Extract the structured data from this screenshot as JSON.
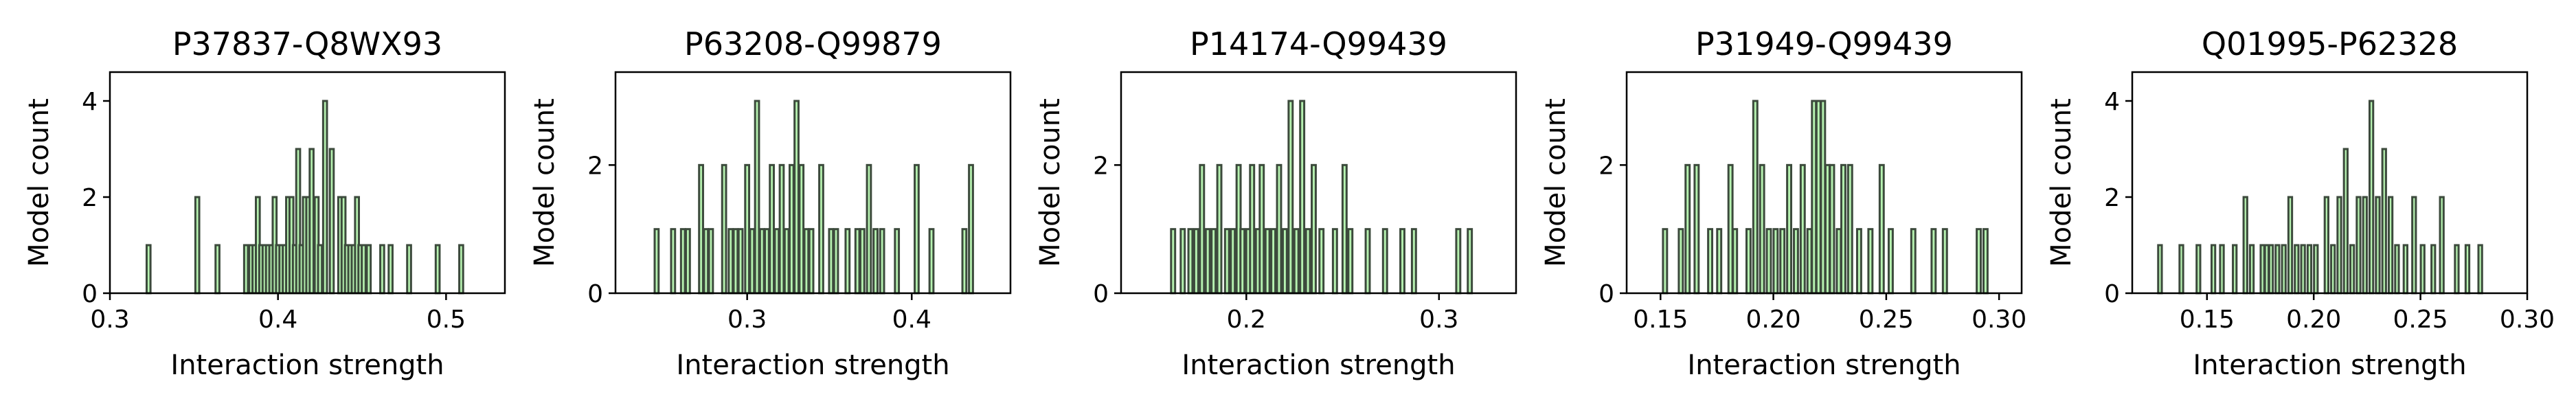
{
  "colors": {
    "bar_fill": "#b6f2b0",
    "bar_edge": "#3c4a3c",
    "axis": "#000000",
    "background": "#ffffff"
  },
  "chart_data": [
    {
      "type": "bar",
      "title": "P37837-Q8WX93",
      "xlabel": "Interaction strength",
      "ylabel": "Model count",
      "xlim": [
        0.3,
        0.535
      ],
      "ylim": [
        0,
        4.6
      ],
      "xticks": [
        0.3,
        0.4,
        0.5
      ],
      "xtick_labels": [
        "0.3",
        "0.4",
        "0.5"
      ],
      "yticks": [
        0,
        2,
        4
      ],
      "ytick_labels": [
        "0",
        "2",
        "4"
      ],
      "bin_width": 0.0023,
      "grid": false,
      "bins": [
        {
          "x": 0.323,
          "count": 1
        },
        {
          "x": 0.352,
          "count": 2
        },
        {
          "x": 0.364,
          "count": 1
        },
        {
          "x": 0.381,
          "count": 1
        },
        {
          "x": 0.384,
          "count": 1
        },
        {
          "x": 0.386,
          "count": 1
        },
        {
          "x": 0.388,
          "count": 2
        },
        {
          "x": 0.39,
          "count": 1
        },
        {
          "x": 0.392,
          "count": 1
        },
        {
          "x": 0.394,
          "count": 1
        },
        {
          "x": 0.396,
          "count": 1
        },
        {
          "x": 0.398,
          "count": 2
        },
        {
          "x": 0.4,
          "count": 1
        },
        {
          "x": 0.402,
          "count": 1
        },
        {
          "x": 0.404,
          "count": 1
        },
        {
          "x": 0.406,
          "count": 2
        },
        {
          "x": 0.408,
          "count": 2
        },
        {
          "x": 0.41,
          "count": 1
        },
        {
          "x": 0.412,
          "count": 3
        },
        {
          "x": 0.414,
          "count": 1
        },
        {
          "x": 0.416,
          "count": 2
        },
        {
          "x": 0.418,
          "count": 2
        },
        {
          "x": 0.42,
          "count": 3
        },
        {
          "x": 0.423,
          "count": 2
        },
        {
          "x": 0.425,
          "count": 1
        },
        {
          "x": 0.428,
          "count": 4
        },
        {
          "x": 0.432,
          "count": 3
        },
        {
          "x": 0.437,
          "count": 2
        },
        {
          "x": 0.439,
          "count": 2
        },
        {
          "x": 0.441,
          "count": 1
        },
        {
          "x": 0.443,
          "count": 1
        },
        {
          "x": 0.445,
          "count": 1
        },
        {
          "x": 0.447,
          "count": 2
        },
        {
          "x": 0.449,
          "count": 1
        },
        {
          "x": 0.451,
          "count": 1
        },
        {
          "x": 0.454,
          "count": 1
        },
        {
          "x": 0.462,
          "count": 1
        },
        {
          "x": 0.467,
          "count": 1
        },
        {
          "x": 0.478,
          "count": 1
        },
        {
          "x": 0.495,
          "count": 1
        },
        {
          "x": 0.509,
          "count": 1
        }
      ]
    },
    {
      "type": "bar",
      "title": "P63208-Q99879",
      "xlabel": "Interaction strength",
      "ylabel": "Model count",
      "xlim": [
        0.22,
        0.46
      ],
      "ylim": [
        0,
        3.45
      ],
      "xticks": [
        0.3,
        0.4
      ],
      "xtick_labels": [
        "0.3",
        "0.4"
      ],
      "yticks": [
        0,
        2
      ],
      "ytick_labels": [
        "0",
        "2"
      ],
      "bin_width": 0.0024,
      "grid": false,
      "bins": [
        {
          "x": 0.245,
          "count": 1
        },
        {
          "x": 0.255,
          "count": 1
        },
        {
          "x": 0.261,
          "count": 1
        },
        {
          "x": 0.264,
          "count": 1
        },
        {
          "x": 0.272,
          "count": 2
        },
        {
          "x": 0.275,
          "count": 1
        },
        {
          "x": 0.278,
          "count": 1
        },
        {
          "x": 0.286,
          "count": 2
        },
        {
          "x": 0.29,
          "count": 1
        },
        {
          "x": 0.293,
          "count": 1
        },
        {
          "x": 0.296,
          "count": 1
        },
        {
          "x": 0.3,
          "count": 2
        },
        {
          "x": 0.303,
          "count": 1
        },
        {
          "x": 0.306,
          "count": 3
        },
        {
          "x": 0.309,
          "count": 1
        },
        {
          "x": 0.312,
          "count": 1
        },
        {
          "x": 0.315,
          "count": 2
        },
        {
          "x": 0.318,
          "count": 1
        },
        {
          "x": 0.321,
          "count": 2
        },
        {
          "x": 0.324,
          "count": 1
        },
        {
          "x": 0.327,
          "count": 2
        },
        {
          "x": 0.33,
          "count": 3
        },
        {
          "x": 0.333,
          "count": 2
        },
        {
          "x": 0.336,
          "count": 1
        },
        {
          "x": 0.339,
          "count": 1
        },
        {
          "x": 0.345,
          "count": 2
        },
        {
          "x": 0.351,
          "count": 1
        },
        {
          "x": 0.354,
          "count": 1
        },
        {
          "x": 0.361,
          "count": 1
        },
        {
          "x": 0.367,
          "count": 1
        },
        {
          "x": 0.37,
          "count": 1
        },
        {
          "x": 0.374,
          "count": 2
        },
        {
          "x": 0.378,
          "count": 1
        },
        {
          "x": 0.382,
          "count": 1
        },
        {
          "x": 0.391,
          "count": 1
        },
        {
          "x": 0.403,
          "count": 2
        },
        {
          "x": 0.412,
          "count": 1
        },
        {
          "x": 0.432,
          "count": 1
        },
        {
          "x": 0.436,
          "count": 2
        }
      ]
    },
    {
      "type": "bar",
      "title": "P14174-Q99439",
      "xlabel": "Interaction strength",
      "ylabel": "Model count",
      "xlim": [
        0.135,
        0.34
      ],
      "ylim": [
        0,
        3.45
      ],
      "xticks": [
        0.2,
        0.3
      ],
      "xtick_labels": [
        "0.2",
        "0.3"
      ],
      "yticks": [
        0,
        2
      ],
      "ytick_labels": [
        "0",
        "2"
      ],
      "bin_width": 0.0021,
      "grid": false,
      "bins": [
        {
          "x": 0.162,
          "count": 1
        },
        {
          "x": 0.167,
          "count": 1
        },
        {
          "x": 0.171,
          "count": 1
        },
        {
          "x": 0.174,
          "count": 1
        },
        {
          "x": 0.177,
          "count": 2
        },
        {
          "x": 0.18,
          "count": 1
        },
        {
          "x": 0.183,
          "count": 1
        },
        {
          "x": 0.186,
          "count": 2
        },
        {
          "x": 0.19,
          "count": 1
        },
        {
          "x": 0.193,
          "count": 1
        },
        {
          "x": 0.196,
          "count": 2
        },
        {
          "x": 0.198,
          "count": 1
        },
        {
          "x": 0.201,
          "count": 1
        },
        {
          "x": 0.203,
          "count": 2
        },
        {
          "x": 0.206,
          "count": 1
        },
        {
          "x": 0.208,
          "count": 2
        },
        {
          "x": 0.211,
          "count": 1
        },
        {
          "x": 0.214,
          "count": 1
        },
        {
          "x": 0.217,
          "count": 2
        },
        {
          "x": 0.22,
          "count": 1
        },
        {
          "x": 0.223,
          "count": 3
        },
        {
          "x": 0.226,
          "count": 1
        },
        {
          "x": 0.229,
          "count": 3
        },
        {
          "x": 0.232,
          "count": 1
        },
        {
          "x": 0.235,
          "count": 2
        },
        {
          "x": 0.239,
          "count": 1
        },
        {
          "x": 0.246,
          "count": 1
        },
        {
          "x": 0.251,
          "count": 2
        },
        {
          "x": 0.254,
          "count": 1
        },
        {
          "x": 0.263,
          "count": 1
        },
        {
          "x": 0.272,
          "count": 1
        },
        {
          "x": 0.281,
          "count": 1
        },
        {
          "x": 0.287,
          "count": 1
        },
        {
          "x": 0.31,
          "count": 1
        },
        {
          "x": 0.316,
          "count": 1
        }
      ]
    },
    {
      "type": "bar",
      "title": "P31949-Q99439",
      "xlabel": "Interaction strength",
      "ylabel": "Model count",
      "xlim": [
        0.135,
        0.31
      ],
      "ylim": [
        0,
        3.45
      ],
      "xticks": [
        0.15,
        0.2,
        0.25,
        0.3
      ],
      "xtick_labels": [
        "0.15",
        "0.20",
        "0.25",
        "0.30"
      ],
      "yticks": [
        0,
        2
      ],
      "ytick_labels": [
        "0",
        "2"
      ],
      "bin_width": 0.0018,
      "grid": false,
      "bins": [
        {
          "x": 0.152,
          "count": 1
        },
        {
          "x": 0.159,
          "count": 1
        },
        {
          "x": 0.162,
          "count": 2
        },
        {
          "x": 0.166,
          "count": 2
        },
        {
          "x": 0.172,
          "count": 1
        },
        {
          "x": 0.176,
          "count": 1
        },
        {
          "x": 0.181,
          "count": 2
        },
        {
          "x": 0.183,
          "count": 1
        },
        {
          "x": 0.189,
          "count": 1
        },
        {
          "x": 0.192,
          "count": 3
        },
        {
          "x": 0.195,
          "count": 2
        },
        {
          "x": 0.198,
          "count": 1
        },
        {
          "x": 0.201,
          "count": 1
        },
        {
          "x": 0.204,
          "count": 1
        },
        {
          "x": 0.207,
          "count": 2
        },
        {
          "x": 0.21,
          "count": 1
        },
        {
          "x": 0.213,
          "count": 2
        },
        {
          "x": 0.216,
          "count": 1
        },
        {
          "x": 0.218,
          "count": 3
        },
        {
          "x": 0.22,
          "count": 3
        },
        {
          "x": 0.222,
          "count": 3
        },
        {
          "x": 0.224,
          "count": 2
        },
        {
          "x": 0.226,
          "count": 2
        },
        {
          "x": 0.229,
          "count": 1
        },
        {
          "x": 0.231,
          "count": 2
        },
        {
          "x": 0.234,
          "count": 2
        },
        {
          "x": 0.238,
          "count": 1
        },
        {
          "x": 0.243,
          "count": 1
        },
        {
          "x": 0.248,
          "count": 2
        },
        {
          "x": 0.252,
          "count": 1
        },
        {
          "x": 0.262,
          "count": 1
        },
        {
          "x": 0.271,
          "count": 1
        },
        {
          "x": 0.276,
          "count": 1
        },
        {
          "x": 0.291,
          "count": 1
        },
        {
          "x": 0.294,
          "count": 1
        }
      ]
    },
    {
      "type": "bar",
      "title": "Q01995-P62328",
      "xlabel": "Interaction strength",
      "ylabel": "Model count",
      "xlim": [
        0.115,
        0.3
      ],
      "ylim": [
        0,
        4.6
      ],
      "xticks": [
        0.15,
        0.2,
        0.25,
        0.3
      ],
      "xtick_labels": [
        "0.15",
        "0.20",
        "0.25",
        "0.30"
      ],
      "yticks": [
        0,
        2,
        4
      ],
      "ytick_labels": [
        "0",
        "2",
        "4"
      ],
      "bin_width": 0.0017,
      "grid": false,
      "bins": [
        {
          "x": 0.128,
          "count": 1
        },
        {
          "x": 0.138,
          "count": 1
        },
        {
          "x": 0.146,
          "count": 1
        },
        {
          "x": 0.153,
          "count": 1
        },
        {
          "x": 0.157,
          "count": 1
        },
        {
          "x": 0.163,
          "count": 1
        },
        {
          "x": 0.168,
          "count": 2
        },
        {
          "x": 0.171,
          "count": 1
        },
        {
          "x": 0.176,
          "count": 1
        },
        {
          "x": 0.178,
          "count": 1
        },
        {
          "x": 0.18,
          "count": 1
        },
        {
          "x": 0.183,
          "count": 1
        },
        {
          "x": 0.186,
          "count": 1
        },
        {
          "x": 0.189,
          "count": 2
        },
        {
          "x": 0.192,
          "count": 1
        },
        {
          "x": 0.195,
          "count": 1
        },
        {
          "x": 0.198,
          "count": 1
        },
        {
          "x": 0.201,
          "count": 1
        },
        {
          "x": 0.206,
          "count": 2
        },
        {
          "x": 0.209,
          "count": 1
        },
        {
          "x": 0.212,
          "count": 2
        },
        {
          "x": 0.215,
          "count": 3
        },
        {
          "x": 0.218,
          "count": 1
        },
        {
          "x": 0.221,
          "count": 2
        },
        {
          "x": 0.224,
          "count": 2
        },
        {
          "x": 0.227,
          "count": 4
        },
        {
          "x": 0.23,
          "count": 2
        },
        {
          "x": 0.233,
          "count": 3
        },
        {
          "x": 0.236,
          "count": 2
        },
        {
          "x": 0.239,
          "count": 1
        },
        {
          "x": 0.243,
          "count": 1
        },
        {
          "x": 0.247,
          "count": 2
        },
        {
          "x": 0.251,
          "count": 1
        },
        {
          "x": 0.256,
          "count": 1
        },
        {
          "x": 0.26,
          "count": 2
        },
        {
          "x": 0.267,
          "count": 1
        },
        {
          "x": 0.272,
          "count": 1
        },
        {
          "x": 0.278,
          "count": 1
        }
      ]
    }
  ]
}
